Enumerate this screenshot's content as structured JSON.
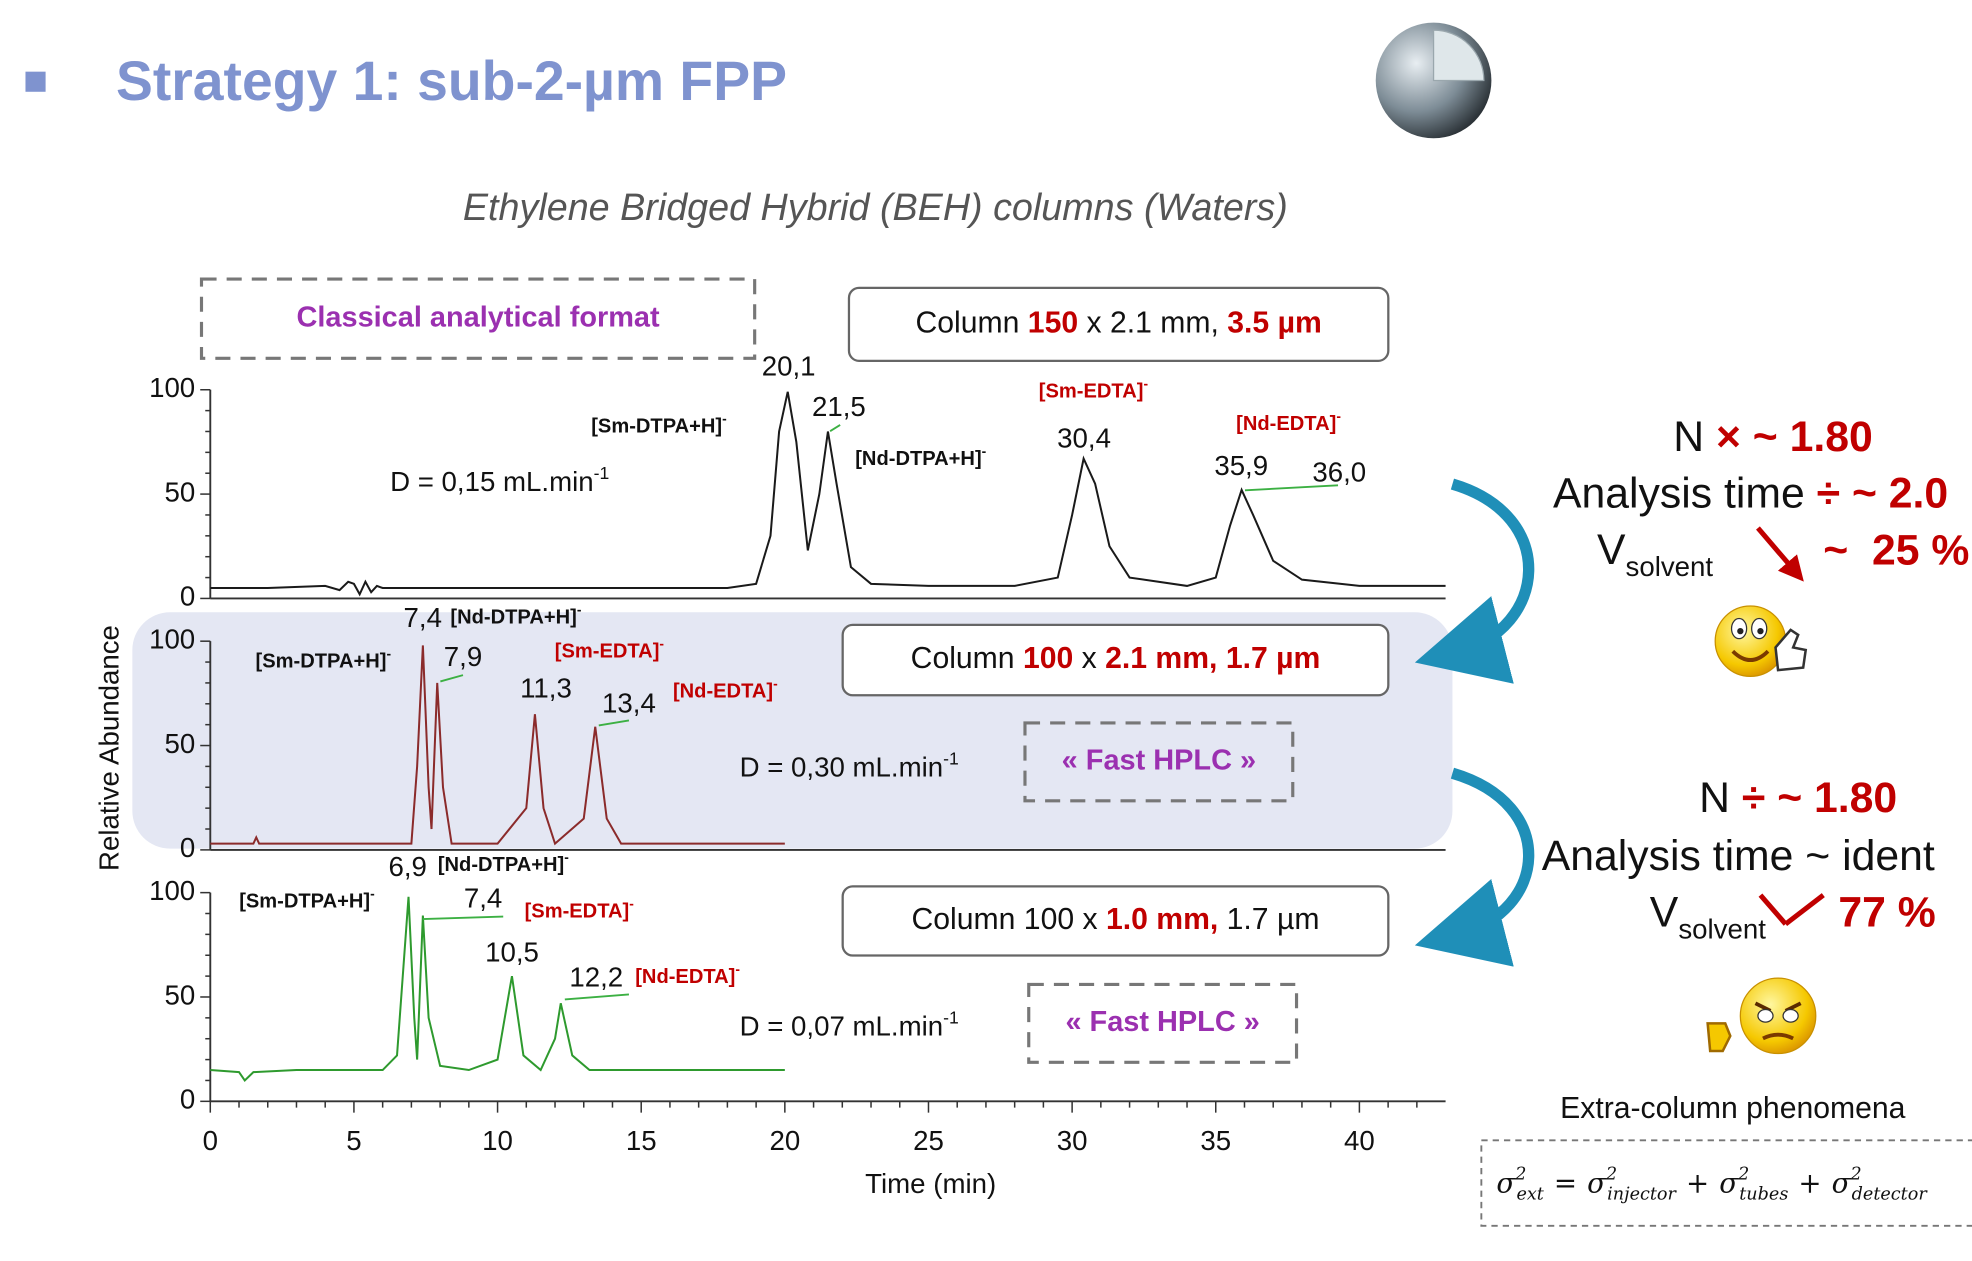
{
  "header": {
    "title": "Strategy 1: sub-2-µm FPP",
    "subtitle": "Ethylene Bridged Hybrid (BEH) columns (Waters)"
  },
  "chart_data": [
    {
      "type": "line",
      "annotation": "Classical analytical format",
      "column": [
        {
          "text": "Column "
        },
        {
          "text": "150",
          "color": "#c00000"
        },
        {
          "text": " x 2.1 mm, "
        },
        {
          "text": "3.5 µm",
          "color": "#c00000"
        }
      ],
      "flow": {
        "text": "D = 0,15 mL.min",
        "exp": "-1"
      },
      "xlim": [
        0,
        43
      ],
      "ylim": [
        0,
        100
      ],
      "yticks": [
        0,
        50,
        100
      ],
      "yminorticks": [
        10,
        20,
        30,
        40,
        60,
        70,
        80,
        90
      ],
      "x": [
        0,
        2,
        4,
        4.5,
        4.8,
        5,
        5.2,
        5.4,
        5.6,
        5.8,
        6,
        8,
        12,
        16,
        18,
        19,
        19.5,
        19.8,
        20.1,
        20.4,
        20.8,
        21.2,
        21.5,
        21.8,
        22.3,
        23,
        25,
        28,
        29.5,
        30,
        30.4,
        30.8,
        31.3,
        32,
        34,
        35,
        35.5,
        35.9,
        36.3,
        37,
        38,
        40,
        43
      ],
      "series": [
        {
          "color": "#1a1a1a",
          "values": [
            5,
            5,
            6,
            4,
            8,
            7,
            2,
            8,
            3,
            6,
            5,
            5,
            5,
            5,
            5,
            7,
            30,
            80,
            99,
            75,
            23,
            50,
            80,
            55,
            15,
            7,
            6,
            6,
            10,
            40,
            67,
            55,
            25,
            10,
            6,
            10,
            35,
            52,
            40,
            18,
            9,
            6,
            6
          ]
        }
      ],
      "peak_labels": [
        {
          "value": 20.1,
          "label": "20,1"
        },
        {
          "value": 21.5,
          "label": "21,5"
        },
        {
          "value": 30.4,
          "label": "30,4"
        },
        {
          "value": 35.9,
          "label": "35,9"
        },
        {
          "value": 36.0,
          "label": "36,0"
        }
      ],
      "ions": [
        {
          "name": "[Sm-DTPA+H]",
          "charge": "-",
          "color": "#111111"
        },
        {
          "name": "[Nd-DTPA+H]",
          "charge": "-",
          "color": "#111111"
        },
        {
          "name": "[Sm-EDTA]",
          "charge": "-",
          "color": "#c00000"
        },
        {
          "name": "[Nd-EDTA]",
          "charge": "-",
          "color": "#c00000"
        }
      ]
    },
    {
      "type": "line",
      "annotation": "« Fast HPLC »",
      "column": [
        {
          "text": "Column "
        },
        {
          "text": "100",
          "color": "#c00000"
        },
        {
          "text": " x "
        },
        {
          "text": "2.1 mm, 1.7 µm",
          "color": "#c00000"
        }
      ],
      "flow": {
        "text": "D = 0,30 mL.min",
        "exp": "-1"
      },
      "ylabel": "Relative Abundance",
      "xlim": [
        0,
        43
      ],
      "ylim": [
        0,
        100
      ],
      "yticks": [
        0,
        50,
        100
      ],
      "yminorticks": [
        10,
        20,
        30,
        40,
        60,
        70,
        80,
        90
      ],
      "x": [
        0,
        1.5,
        1.6,
        1.7,
        5,
        7,
        7.2,
        7.4,
        7.6,
        7.7,
        7.9,
        8.1,
        8.4,
        10,
        11,
        11.3,
        11.6,
        12,
        13,
        13.4,
        13.8,
        14.3,
        16,
        20
      ],
      "series": [
        {
          "color": "#8b2b2b",
          "values": [
            3,
            3,
            6,
            3,
            3,
            3,
            40,
            98,
            30,
            10,
            80,
            30,
            3,
            3,
            20,
            65,
            20,
            3,
            15,
            59,
            15,
            3,
            3,
            3
          ]
        }
      ],
      "peak_labels": [
        {
          "value": 7.4,
          "label": "7,4"
        },
        {
          "value": 7.9,
          "label": "7,9"
        },
        {
          "value": 11.3,
          "label": "11,3"
        },
        {
          "value": 13.4,
          "label": "13,4"
        }
      ],
      "ions": [
        {
          "name": "[Nd-DTPA+H]",
          "charge": "-",
          "color": "#111111"
        },
        {
          "name": "[Sm-DTPA+H]",
          "charge": "-",
          "color": "#111111"
        },
        {
          "name": "[Sm-EDTA]",
          "charge": "-",
          "color": "#c00000"
        },
        {
          "name": "[Nd-EDTA]",
          "charge": "-",
          "color": "#c00000"
        }
      ]
    },
    {
      "type": "line",
      "annotation": "« Fast HPLC »",
      "column": [
        {
          "text": "Column 100 x "
        },
        {
          "text": "1.0 mm,",
          "color": "#c00000"
        },
        {
          "text": " 1.7 µm"
        }
      ],
      "flow": {
        "text": "D = 0,07 mL.min",
        "exp": "-1"
      },
      "xlabel": "Time (min)",
      "xlim": [
        0,
        43
      ],
      "ylim": [
        0,
        100
      ],
      "yticks": [
        0,
        50,
        100
      ],
      "yminorticks": [
        10,
        20,
        30,
        40,
        60,
        70,
        80,
        90
      ],
      "xticks": [
        0,
        5,
        10,
        15,
        20,
        25,
        30,
        35,
        40
      ],
      "xminorticks": [
        1,
        2,
        3,
        4,
        6,
        7,
        8,
        9,
        11,
        12,
        13,
        14,
        16,
        17,
        18,
        19,
        21,
        22,
        23,
        24,
        26,
        27,
        28,
        29,
        31,
        32,
        33,
        34,
        36,
        37,
        38,
        39,
        41,
        42
      ],
      "x": [
        0,
        1,
        1.2,
        1.5,
        3,
        6,
        6.5,
        6.9,
        7.1,
        7.2,
        7.4,
        7.6,
        8,
        9,
        10,
        10.5,
        10.9,
        11.5,
        12,
        12.2,
        12.6,
        13.2,
        16,
        20
      ],
      "series": [
        {
          "color": "#2e9a2e",
          "values": [
            15,
            14,
            10,
            14,
            15,
            15,
            22,
            98,
            40,
            20,
            89,
            40,
            17,
            15,
            20,
            60,
            22,
            15,
            30,
            47,
            22,
            15,
            15,
            15
          ]
        }
      ],
      "peak_labels": [
        {
          "value": 6.9,
          "label": "6,9"
        },
        {
          "value": 7.4,
          "label": "7,4"
        },
        {
          "value": 10.5,
          "label": "10,5"
        },
        {
          "value": 12.2,
          "label": "12,2"
        }
      ],
      "ions": [
        {
          "name": "[Nd-DTPA+H]",
          "charge": "-",
          "color": "#111111"
        },
        {
          "name": "[Sm-DTPA+H]",
          "charge": "-",
          "color": "#111111"
        },
        {
          "name": "[Sm-EDTA]",
          "charge": "-",
          "color": "#c00000"
        },
        {
          "name": "[Nd-EDTA]",
          "charge": "-",
          "color": "#c00000"
        }
      ]
    }
  ],
  "results": [
    {
      "n": "N ",
      "n_change": "× ~ 1.80",
      "time": "Analysis time ",
      "time_change": "÷ ~ 2.0",
      "v": "V",
      "v_sub": "solvent",
      "v_change": "~  25 %"
    },
    {
      "n": "N ",
      "n_change": "÷ ~ 1.80",
      "time": "Analysis time ~ ident",
      "v": "V",
      "v_sub": "solvent",
      "v_change": "77 %"
    }
  ],
  "extra_column": {
    "title": "Extra-column phenomena",
    "formula": [
      {
        "base": "σ",
        "sup": "2",
        "sub": "ext"
      },
      "=",
      {
        "base": "σ",
        "sup": "2",
        "sub": "injector"
      },
      "+",
      {
        "base": "σ",
        "sup": "2",
        "sub": "tubes"
      },
      "+",
      {
        "base": "σ",
        "sup": "2",
        "sub": "detector"
      }
    ]
  }
}
